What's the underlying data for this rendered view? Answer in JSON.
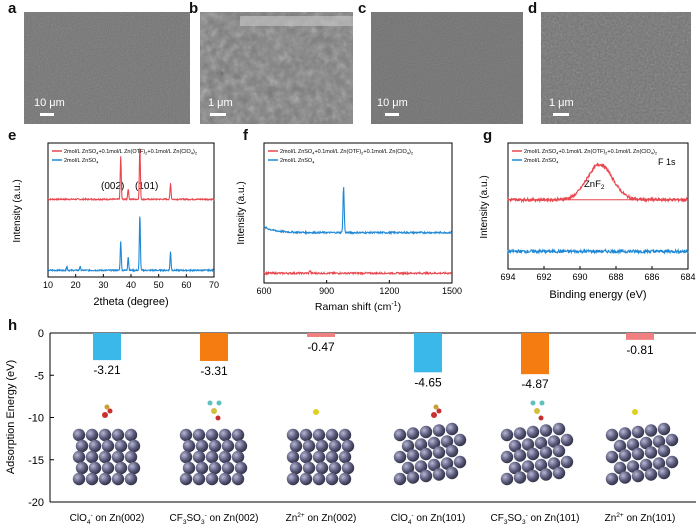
{
  "panels": {
    "a": {
      "label": "a",
      "scale": "10 μm"
    },
    "b": {
      "label": "b",
      "scale": "1 μm"
    },
    "c": {
      "label": "c",
      "scale": "10 μm"
    },
    "d": {
      "label": "d",
      "scale": "1 μm"
    },
    "e": {
      "label": "e"
    },
    "f": {
      "label": "f"
    },
    "g": {
      "label": "g"
    },
    "h": {
      "label": "h"
    }
  },
  "colors": {
    "red": "#e8474f",
    "blue": "#1e88d6",
    "cyan": "#3bb8ea",
    "orange": "#f57c10",
    "pink": "#f08080"
  },
  "chart_data": [
    {
      "id": "xrd",
      "type": "line",
      "xlabel": "2theta (degree)",
      "ylabel": "Intensity (a.u.)",
      "xlim": [
        10,
        70
      ],
      "xticks": [
        10,
        20,
        30,
        40,
        50,
        60,
        70
      ],
      "legend": [
        "2mol/L ZnSO4+0.1mol/L Zn(OTF)2+0.1mol/L Zn(ClO4)2",
        "2mol/L ZnSO4"
      ],
      "annotations": [
        "(002)",
        "(101)"
      ],
      "series": [
        {
          "name": "2mol/L ZnSO4+0.1mol/L Zn(OTF)2+0.1mol/L Zn(ClO4)2",
          "color": "red",
          "baseline": 0.58,
          "peaks": [
            [
              36.3,
              0.32
            ],
            [
              39.0,
              0.08
            ],
            [
              43.2,
              0.4
            ],
            [
              54.3,
              0.12
            ]
          ]
        },
        {
          "name": "2mol/L ZnSO4",
          "color": "blue",
          "baseline": 0.05,
          "peaks": [
            [
              16.8,
              0.03
            ],
            [
              21.6,
              0.03
            ],
            [
              36.3,
              0.22
            ],
            [
              39.0,
              0.1
            ],
            [
              43.2,
              0.42
            ],
            [
              54.3,
              0.14
            ]
          ]
        }
      ]
    },
    {
      "id": "raman",
      "type": "line",
      "xlabel": "Raman shift (cm-1)",
      "ylabel": "Intensity (a.u.)",
      "xlim": [
        600,
        1500
      ],
      "xticks": [
        600,
        900,
        1200,
        1500
      ],
      "legend": [
        "2mol/L ZnSO4+0.1mol/L Zn(OTF)2+0.1mol/L Zn(ClO4)2",
        "2mol/L ZnSO4"
      ],
      "series": [
        {
          "name": "2mol/L ZnSO4+0.1mol/L Zn(OTF)2+0.1mol/L Zn(ClO4)2",
          "color": "red",
          "baseline": 0.07,
          "peaks": [
            [
              820,
              0.02
            ]
          ]
        },
        {
          "name": "2mol/L ZnSO4",
          "color": "blue",
          "baseline": 0.36,
          "start_bump": 0.04,
          "peaks": [
            [
              981,
              0.33
            ]
          ]
        }
      ]
    },
    {
      "id": "xps",
      "type": "line",
      "title": "F 1s",
      "xlabel": "Binding energy (eV)",
      "ylabel": "Intensity (a.u.)",
      "xlim": [
        694,
        684
      ],
      "xticks": [
        694,
        692,
        690,
        688,
        686,
        684
      ],
      "legend": [
        "2mol/L ZnSO4+0.1mol/L Zn(OTF)2+0.1mol/L Zn(ClO4)2",
        "2mol/L ZnSO4"
      ],
      "annotations": [
        "ZnF2"
      ],
      "series": [
        {
          "name": "2mol/L ZnSO4+0.1mol/L Zn(OTF)2+0.1mol/L Zn(ClO4)2",
          "color": "red",
          "baseline": 0.55,
          "peaks": [
            [
              688.9,
              0.28
            ]
          ]
        },
        {
          "name": "2mol/L ZnSO4",
          "color": "blue",
          "baseline": 0.14,
          "peaks": []
        }
      ]
    },
    {
      "id": "adsorption",
      "type": "bar",
      "ylabel": "Adsorption Energy (eV)",
      "ylim": [
        -20,
        0
      ],
      "yticks": [
        0,
        -5,
        -10,
        -15,
        -20
      ],
      "categories": [
        "ClO4- on Zn(002)",
        "CF3SO3- on Zn(002)",
        "Zn2+ on Zn(002)",
        "ClO4- on Zn(101)",
        "CF3SO3- on Zn(101)",
        "Zn2+ on Zn(101)"
      ],
      "values": [
        -3.21,
        -3.31,
        -0.47,
        -4.65,
        -4.87,
        -0.81
      ],
      "value_labels": [
        "-3.21",
        "-3.31",
        "-0.47",
        "-4.65",
        "-4.87",
        "-0.81"
      ],
      "bar_colors": [
        "cyan",
        "orange",
        "pink",
        "cyan",
        "orange",
        "pink"
      ]
    }
  ]
}
